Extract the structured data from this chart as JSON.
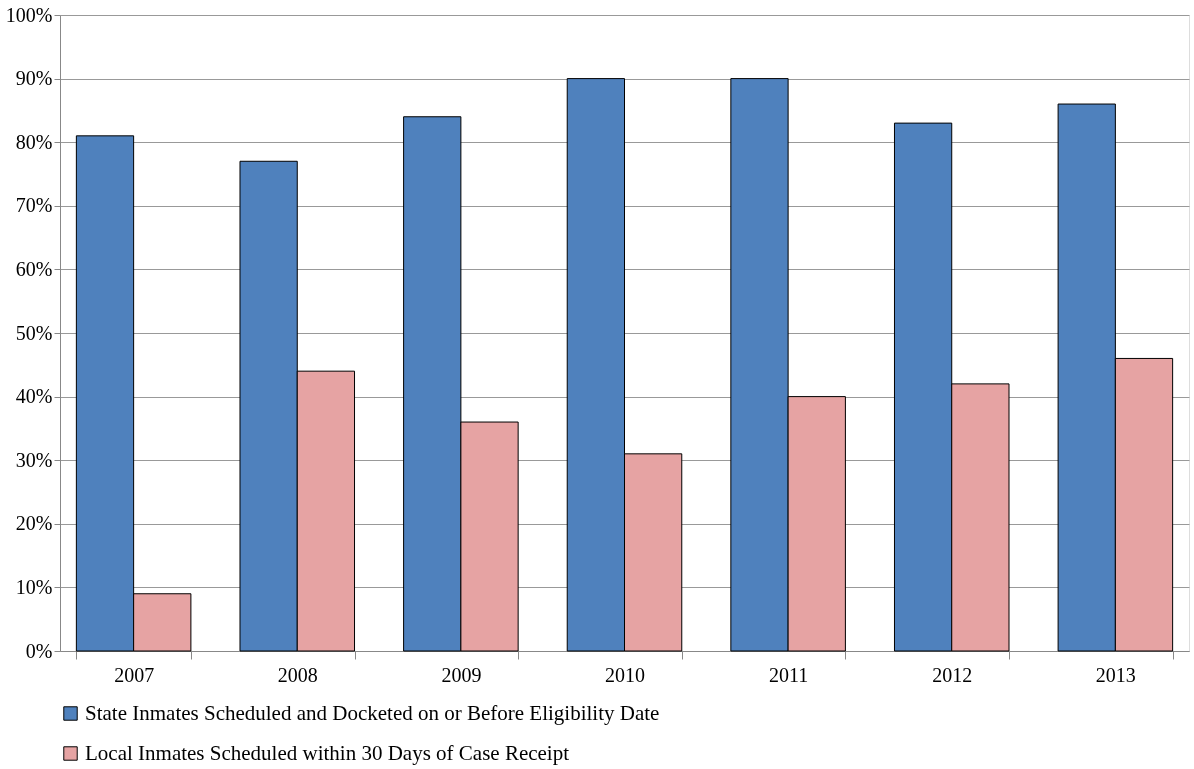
{
  "chart_data": {
    "type": "bar",
    "categories": [
      "2007",
      "2008",
      "2009",
      "2010",
      "2011",
      "2012",
      "2013"
    ],
    "series": [
      {
        "name": "State Inmates Scheduled and Docketed on or Before Eligibility Date",
        "color": "#4f81bd",
        "values": [
          81,
          77,
          84,
          90,
          90,
          83,
          86
        ]
      },
      {
        "name": "Local Inmates Scheduled within 30 Days of Case Receipt",
        "color": "#e6a3a3",
        "values": [
          9,
          44,
          36,
          31,
          40,
          42,
          46
        ]
      }
    ],
    "ylim": [
      0,
      100
    ],
    "yticks": [
      {
        "value": 0,
        "label": "0%"
      },
      {
        "value": 10,
        "label": "10%"
      },
      {
        "value": 20,
        "label": "20%"
      },
      {
        "value": 30,
        "label": "30%"
      },
      {
        "value": 40,
        "label": "40%"
      },
      {
        "value": 50,
        "label": "50%"
      },
      {
        "value": 60,
        "label": "60%"
      },
      {
        "value": 70,
        "label": "70%"
      },
      {
        "value": 80,
        "label": "80%"
      },
      {
        "value": 90,
        "label": "90%"
      },
      {
        "value": 100,
        "label": "100%"
      }
    ],
    "grid": "y",
    "legend": "bottom"
  }
}
